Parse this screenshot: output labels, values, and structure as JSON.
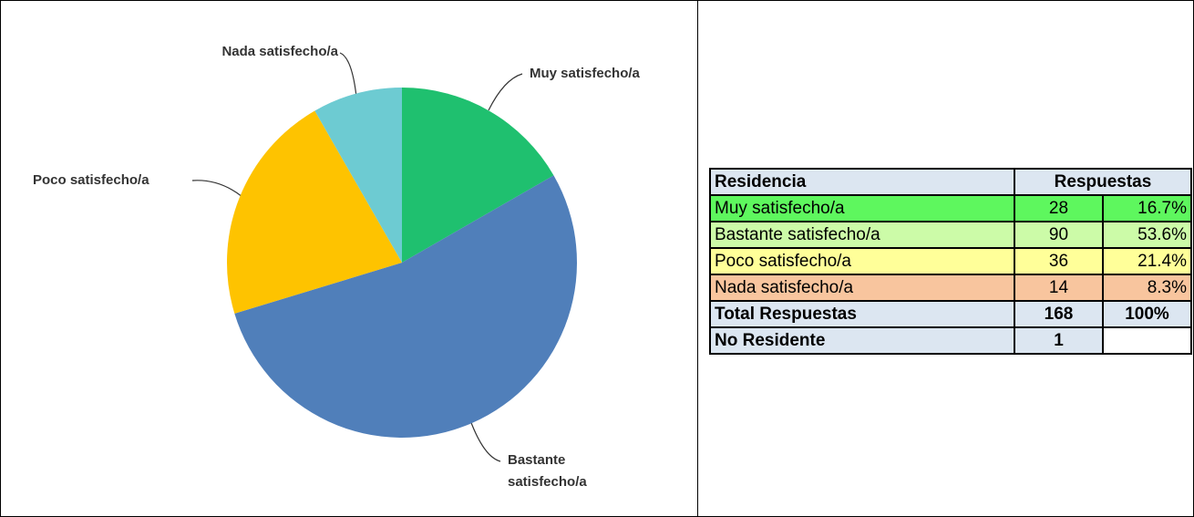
{
  "chart_data": {
    "type": "pie",
    "categories": [
      "Muy satisfecho/a",
      "Bastante satisfecho/a",
      "Poco satisfecho/a",
      "Nada satisfecho/a"
    ],
    "values": [
      16.7,
      53.6,
      21.4,
      8.3
    ],
    "colors": [
      "#1fc06f",
      "#507fba",
      "#fec300",
      "#6dcbd2"
    ]
  },
  "table": {
    "header": [
      "Residencia",
      "Respuestas"
    ],
    "rows": [
      [
        "Muy satisfecho/a",
        "28",
        "16.7%"
      ],
      [
        "Bastante satisfecho/a",
        "90",
        "53.6%"
      ],
      [
        "Poco satisfecho/a",
        "36",
        "21.4%"
      ],
      [
        "Nada satisfecho/a",
        "14",
        "8.3%"
      ],
      [
        "Total Respuestas",
        "168",
        "100%"
      ],
      [
        "No Residente",
        "1"
      ]
    ]
  }
}
